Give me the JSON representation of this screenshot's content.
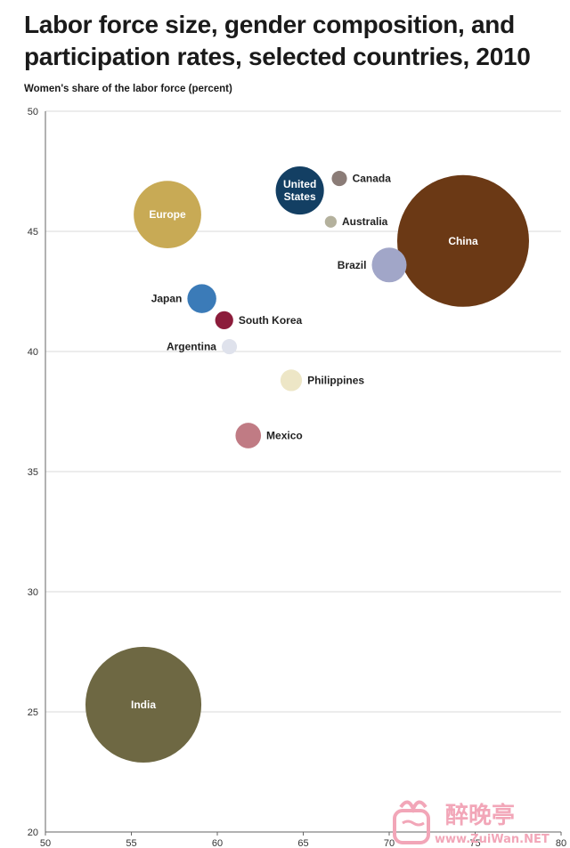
{
  "title": "Labor force size, gender composition, and participation rates, selected countries, 2010",
  "watermark": {
    "brand": "醉晚亭",
    "url": "www.ZuiWan.NET"
  },
  "chart_data": {
    "type": "scatter",
    "title": "Labor force size, gender composition, and participation rates, selected countries, 2010",
    "xlabel": "",
    "ylabel": "Women's share of the labor force (percent)",
    "xlim": [
      50,
      80
    ],
    "ylim": [
      20,
      50
    ],
    "xticks": [
      50,
      55,
      60,
      65,
      70,
      75,
      80
    ],
    "yticks": [
      20,
      25,
      30,
      35,
      40,
      45,
      50
    ],
    "grid": "horizontal",
    "series": [
      {
        "label": "China",
        "x": 74.3,
        "y": 44.6,
        "size": 37.4,
        "color": "#6b3915",
        "label_inside": true
      },
      {
        "label": "India",
        "x": 55.7,
        "y": 25.3,
        "size": 28.9,
        "color": "#6e6843",
        "label_inside": true
      },
      {
        "label": "Europe",
        "x": 57.1,
        "y": 45.7,
        "size": 9.8,
        "color": "#c8aa55",
        "label_inside": true
      },
      {
        "label": "United States",
        "x": 64.8,
        "y": 46.7,
        "size": 5.0,
        "color": "#133f63",
        "label_inside": true
      },
      {
        "label": "Brazil",
        "x": 70.0,
        "y": 43.6,
        "size": 2.6,
        "color": "#a1a6c8",
        "label_inside": false,
        "label_side": "left"
      },
      {
        "label": "Canada",
        "x": 67.1,
        "y": 47.2,
        "size": 0.5,
        "color": "#8b7c77",
        "label_inside": false,
        "label_side": "right"
      },
      {
        "label": "Australia",
        "x": 66.6,
        "y": 45.4,
        "size": 0.3,
        "color": "#b4b19d",
        "label_inside": false,
        "label_side": "right"
      },
      {
        "label": "Japan",
        "x": 59.1,
        "y": 42.2,
        "size": 1.8,
        "color": "#3b7bb8",
        "label_inside": false,
        "label_side": "left"
      },
      {
        "label": "South Korea",
        "x": 60.4,
        "y": 41.3,
        "size": 0.7,
        "color": "#8c1c3b",
        "label_inside": false,
        "label_side": "right"
      },
      {
        "label": "Argentina",
        "x": 60.7,
        "y": 40.2,
        "size": 0.5,
        "color": "#dfe2ec",
        "label_inside": false,
        "label_side": "left"
      },
      {
        "label": "Philippines",
        "x": 64.3,
        "y": 38.8,
        "size": 1.0,
        "color": "#ede6c6",
        "label_inside": false,
        "label_side": "right"
      },
      {
        "label": "Mexico",
        "x": 61.8,
        "y": 36.5,
        "size": 1.4,
        "color": "#c07b84",
        "label_inside": false,
        "label_side": "right"
      }
    ]
  }
}
